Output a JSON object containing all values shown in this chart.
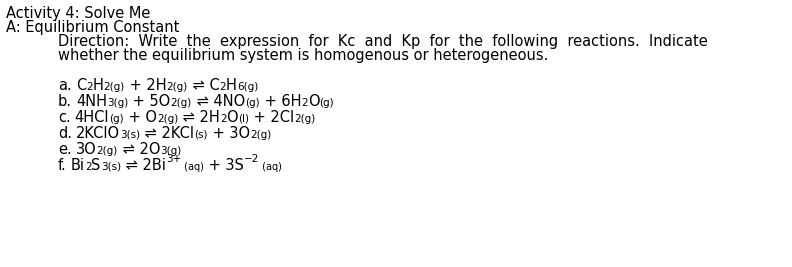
{
  "title1": "Activity 4: Solve Me",
  "title2": "A: Equilibrium Constant",
  "direction_line1": "Direction:  Write  the  expression  for  Kc  and  Kp  for  the  following  reactions.  Indicate",
  "direction_line2": "whether the equilibrium system is homogenous or heterogeneous.",
  "bg_color": "#ffffff",
  "text_color": "#000000",
  "font_size": 10.5,
  "sub_font_size": 7.5,
  "reactions": [
    {
      "label": "a.",
      "parts": [
        {
          "text": "C",
          "style": "normal"
        },
        {
          "text": "2",
          "style": "sub"
        },
        {
          "text": "H",
          "style": "normal"
        },
        {
          "text": "2(g)",
          "style": "sub"
        },
        {
          "text": " + 2H",
          "style": "normal"
        },
        {
          "text": "2(g)",
          "style": "sub"
        },
        {
          "text": " ⇌ C",
          "style": "normal"
        },
        {
          "text": "2",
          "style": "sub"
        },
        {
          "text": "H",
          "style": "normal"
        },
        {
          "text": "6(g)",
          "style": "sub"
        }
      ]
    },
    {
      "label": "b.",
      "parts": [
        {
          "text": "4NH",
          "style": "normal"
        },
        {
          "text": "3(g)",
          "style": "sub"
        },
        {
          "text": " + 5O",
          "style": "normal"
        },
        {
          "text": "2(g)",
          "style": "sub"
        },
        {
          "text": " ⇌ 4NO",
          "style": "normal"
        },
        {
          "text": "(g)",
          "style": "sub"
        },
        {
          "text": " + 6H",
          "style": "normal"
        },
        {
          "text": "2",
          "style": "sub"
        },
        {
          "text": "O",
          "style": "normal"
        },
        {
          "text": "(g)",
          "style": "sub"
        }
      ]
    },
    {
      "label": "c.",
      "parts": [
        {
          "text": "4HCl",
          "style": "normal"
        },
        {
          "text": "(g)",
          "style": "sub"
        },
        {
          "text": " + O",
          "style": "normal"
        },
        {
          "text": "2(g)",
          "style": "sub"
        },
        {
          "text": " ⇌ 2H",
          "style": "normal"
        },
        {
          "text": "2",
          "style": "sub"
        },
        {
          "text": "O",
          "style": "normal"
        },
        {
          "text": "(l)",
          "style": "sub"
        },
        {
          "text": " + 2Cl",
          "style": "normal"
        },
        {
          "text": "2(g)",
          "style": "sub"
        }
      ]
    },
    {
      "label": "d.",
      "parts": [
        {
          "text": "2KClO",
          "style": "normal"
        },
        {
          "text": "3(s)",
          "style": "sub"
        },
        {
          "text": " ⇌ 2KCl",
          "style": "normal"
        },
        {
          "text": "(s)",
          "style": "sub"
        },
        {
          "text": " + 3O",
          "style": "normal"
        },
        {
          "text": "2(g)",
          "style": "sub"
        }
      ]
    },
    {
      "label": "e.",
      "parts": [
        {
          "text": "3O",
          "style": "normal"
        },
        {
          "text": "2(g)",
          "style": "sub"
        },
        {
          "text": " ⇌ 2O",
          "style": "normal"
        },
        {
          "text": "3(g)",
          "style": "sub"
        }
      ]
    },
    {
      "label": "f.",
      "parts": [
        {
          "text": "Bi",
          "style": "normal"
        },
        {
          "text": "2",
          "style": "sub"
        },
        {
          "text": "S",
          "style": "normal"
        },
        {
          "text": "3(s)",
          "style": "sub"
        },
        {
          "text": " ⇌ 2Bi",
          "style": "normal"
        },
        {
          "text": "3+",
          "style": "sup"
        },
        {
          "text": " (aq)",
          "style": "subsm"
        },
        {
          "text": " + 3S",
          "style": "normal"
        },
        {
          "text": "−2",
          "style": "sup"
        },
        {
          "text": " (aq)",
          "style": "subsm"
        }
      ]
    }
  ]
}
